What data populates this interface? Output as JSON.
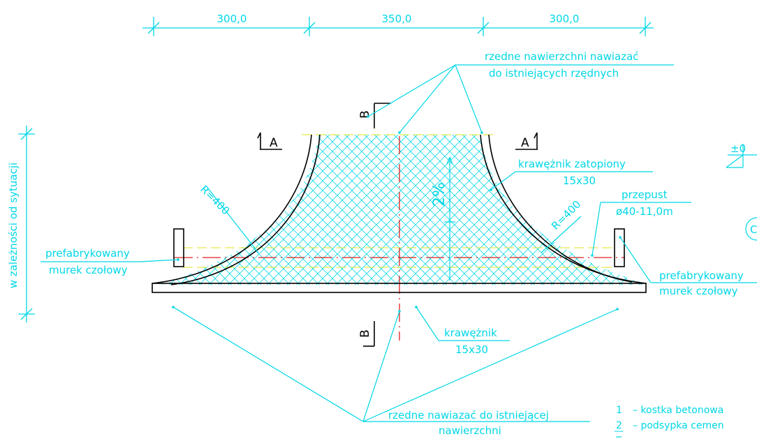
{
  "dimensions": {
    "top": [
      "300,0",
      "350,0",
      "300,0"
    ],
    "side": "w zależności od sytuacji"
  },
  "labels": {
    "surface_line1": "rzedne nawierzchni nawiazać",
    "surface_line2": "do istniejących rzędnych",
    "curb_sunken_line1": "krawężnik zatopiony",
    "curb_sunken_line2": "15x30",
    "culvert_line1": "przepust",
    "culvert_line2": "ø40-11,0m",
    "wall_left_line1": "prefabrykowany",
    "wall_left_line2": "murek czołowy",
    "wall_right_line1": "prefabrykowany",
    "wall_right_line2": "murek czołowy",
    "curb_line1": "krawężnik",
    "curb_line2": "15x30",
    "existing_line1": "rzedne nawiazać do istniejącej",
    "existing_line2": "nawierzchni",
    "radius_left": "R=400",
    "radius_right": "R=400",
    "slope": "2%",
    "section_a_left": "A",
    "section_a_right": "A",
    "section_b_top": "B",
    "section_b_bottom": "B",
    "elevation_partial": "±0",
    "circle_partial": "C"
  },
  "legend": [
    {
      "num": "1",
      "text": "– kostka betonowa"
    },
    {
      "num": "2",
      "text": "– podsypka cemen"
    }
  ],
  "colors": {
    "dimension": "#00d7e6",
    "outline": "#000000",
    "axis": "#e02020",
    "culvert": "#e8e84a",
    "hatch": "#00d7e6"
  }
}
